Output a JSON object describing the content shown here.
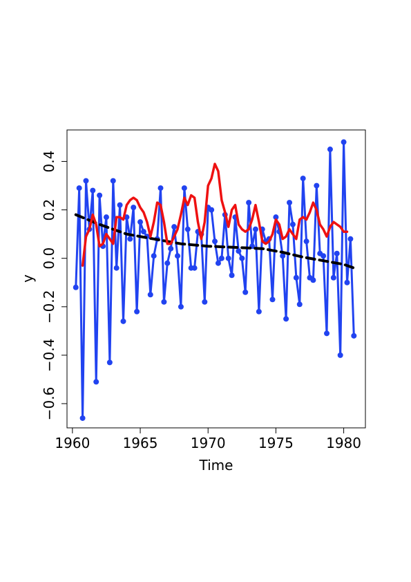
{
  "chart_data": {
    "type": "line",
    "xlabel": "Time",
    "ylabel": "y",
    "xlim": [
      1959.6,
      1981.6
    ],
    "ylim": [
      -0.7,
      0.53
    ],
    "xticks": [
      1960,
      1965,
      1970,
      1975,
      1980
    ],
    "yticks": [
      -0.6,
      -0.4,
      -0.2,
      0.0,
      0.2,
      0.4
    ],
    "xtick_labels": [
      "1960",
      "1965",
      "1970",
      "1975",
      "1980"
    ],
    "ytick_labels": [
      "−0.6",
      "−0.4",
      "−0.2",
      "0.0",
      "0.2",
      "0.4"
    ],
    "grid": false,
    "colors": {
      "observed": "#2143f0",
      "smooth": "#ee1111",
      "trend": "#000000"
    },
    "series": [
      {
        "id": "observed",
        "style": "line-with-markers",
        "x": [
          1960.25,
          1960.5,
          1960.75,
          1961,
          1961.25,
          1961.5,
          1961.75,
          1962,
          1962.25,
          1962.5,
          1962.75,
          1963,
          1963.25,
          1963.5,
          1963.75,
          1964,
          1964.25,
          1964.5,
          1964.75,
          1965,
          1965.25,
          1965.5,
          1965.75,
          1966,
          1966.25,
          1966.5,
          1966.75,
          1967,
          1967.25,
          1967.5,
          1967.75,
          1968,
          1968.25,
          1968.5,
          1968.75,
          1969,
          1969.25,
          1969.5,
          1969.75,
          1970,
          1970.25,
          1970.5,
          1970.75,
          1971,
          1971.25,
          1971.5,
          1971.75,
          1972,
          1972.25,
          1972.5,
          1972.75,
          1973,
          1973.25,
          1973.5,
          1973.75,
          1974,
          1974.25,
          1974.5,
          1974.75,
          1975,
          1975.25,
          1975.5,
          1975.75,
          1976,
          1976.25,
          1976.5,
          1976.75,
          1977,
          1977.25,
          1977.5,
          1977.75,
          1978,
          1978.25,
          1978.5,
          1978.75,
          1979,
          1979.25,
          1979.5,
          1979.75,
          1980,
          1980.25,
          1980.5,
          1980.75
        ],
        "y": [
          -0.12,
          0.29,
          -0.66,
          0.32,
          0.12,
          0.28,
          -0.51,
          0.26,
          0.05,
          0.17,
          -0.43,
          0.32,
          -0.04,
          0.22,
          -0.26,
          0.17,
          0.08,
          0.21,
          -0.22,
          0.15,
          0.11,
          0.09,
          -0.15,
          0.01,
          0.08,
          0.29,
          -0.18,
          -0.02,
          0.04,
          0.13,
          0.01,
          -0.2,
          0.29,
          0.12,
          -0.04,
          -0.04,
          0.11,
          0.1,
          -0.18,
          0.21,
          0.2,
          0.07,
          -0.02,
          0.0,
          0.18,
          0.0,
          -0.07,
          0.17,
          0.03,
          0.0,
          -0.14,
          0.23,
          0.05,
          0.12,
          -0.22,
          0.12,
          0.07,
          0.08,
          -0.17,
          0.17,
          0.11,
          0.01,
          -0.25,
          0.23,
          0.14,
          -0.08,
          -0.19,
          0.33,
          0.07,
          -0.08,
          -0.09,
          0.3,
          0.02,
          0.01,
          -0.31,
          0.45,
          -0.08,
          0.02,
          -0.4,
          0.48,
          -0.1,
          0.08,
          -0.32
        ]
      },
      {
        "id": "smooth",
        "style": "line",
        "x": [
          1960.75,
          1961,
          1961.25,
          1961.5,
          1961.75,
          1962,
          1962.25,
          1962.5,
          1962.75,
          1963,
          1963.25,
          1963.5,
          1963.75,
          1964,
          1964.25,
          1964.5,
          1964.75,
          1965,
          1965.25,
          1965.5,
          1965.75,
          1966,
          1966.25,
          1966.5,
          1966.75,
          1967,
          1967.25,
          1967.5,
          1967.75,
          1968,
          1968.25,
          1968.5,
          1968.75,
          1969,
          1969.25,
          1969.5,
          1969.75,
          1970,
          1970.25,
          1970.5,
          1970.75,
          1971,
          1971.25,
          1971.5,
          1971.75,
          1972,
          1972.25,
          1972.5,
          1972.75,
          1973,
          1973.25,
          1973.5,
          1973.75,
          1974,
          1974.25,
          1974.5,
          1974.75,
          1975,
          1975.25,
          1975.5,
          1975.75,
          1976,
          1976.25,
          1976.5,
          1976.75,
          1977,
          1977.25,
          1977.5,
          1977.75,
          1978,
          1978.25,
          1978.5,
          1978.75,
          1979,
          1979.25,
          1979.5,
          1979.75,
          1980,
          1980.25
        ],
        "y": [
          -0.03,
          0.09,
          0.12,
          0.18,
          0.14,
          0.05,
          0.06,
          0.1,
          0.08,
          0.06,
          0.17,
          0.17,
          0.16,
          0.22,
          0.24,
          0.25,
          0.24,
          0.21,
          0.19,
          0.15,
          0.09,
          0.15,
          0.23,
          0.22,
          0.15,
          0.06,
          0.06,
          0.09,
          0.12,
          0.18,
          0.25,
          0.22,
          0.26,
          0.25,
          0.15,
          0.08,
          0.15,
          0.3,
          0.33,
          0.39,
          0.36,
          0.24,
          0.19,
          0.13,
          0.2,
          0.22,
          0.14,
          0.12,
          0.11,
          0.12,
          0.16,
          0.22,
          0.15,
          0.07,
          0.06,
          0.07,
          0.1,
          0.16,
          0.14,
          0.08,
          0.09,
          0.12,
          0.1,
          0.08,
          0.16,
          0.17,
          0.16,
          0.19,
          0.23,
          0.2,
          0.14,
          0.12,
          0.09,
          0.13,
          0.15,
          0.14,
          0.13,
          0.11,
          0.11
        ]
      },
      {
        "id": "trend",
        "style": "dashed-line",
        "x": [
          1960.25,
          1962,
          1964,
          1966,
          1968,
          1970,
          1972,
          1974,
          1975.5,
          1977,
          1978.5,
          1980,
          1980.75
        ],
        "y": [
          0.18,
          0.14,
          0.1,
          0.08,
          0.06,
          0.05,
          0.045,
          0.04,
          0.025,
          0.005,
          -0.01,
          -0.025,
          -0.04
        ]
      }
    ]
  }
}
